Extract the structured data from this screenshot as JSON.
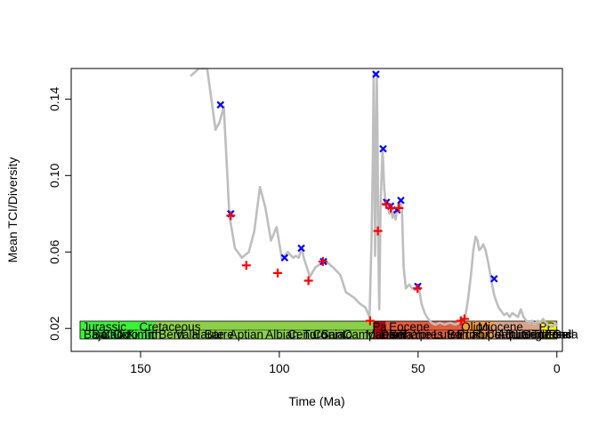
{
  "chart_data": {
    "type": "line",
    "title": "",
    "xlabel": "Time (Ma)",
    "ylabel": "Mean TCI/Diversity",
    "xlim": [
      175,
      -2
    ],
    "ylim": [
      0.008,
      0.156
    ],
    "x_ticks": [
      150,
      100,
      50,
      0
    ],
    "x_tick_labels": [
      "150",
      "100",
      "50",
      "0"
    ],
    "y_ticks": [
      0.02,
      0.06,
      0.1,
      0.14
    ],
    "y_tick_labels": [
      "0.02",
      "0.06",
      "0.10",
      "0.14"
    ],
    "grid": false,
    "legend": "none",
    "series": [
      {
        "style": "line",
        "color": "#bebebe",
        "x": [
          132,
          129,
          126,
          123,
          121.5,
          120,
          118,
          116,
          113.5,
          111,
          109,
          107,
          105,
          103,
          101,
          99,
          97,
          95,
          94,
          93,
          92,
          91,
          89,
          87,
          85,
          83,
          80,
          78,
          76,
          73,
          71,
          69,
          67.5,
          66.7,
          66.3,
          66.0,
          65.7,
          65.5,
          65.2,
          64.9,
          64.6,
          64.3,
          64.0,
          63.5,
          62.8,
          62.2,
          61.7,
          61.0,
          60.4,
          59.7,
          59.2,
          58.7,
          58.1,
          57.5,
          56.9,
          56.4,
          55.8,
          55.2,
          54.4,
          53.2,
          52.2,
          51.0,
          49.8,
          48.8,
          47.6,
          46.4,
          45.2,
          43.8,
          42.2,
          40.5,
          38.5,
          36.6,
          35.2,
          34.4,
          33.7,
          33.0,
          32.2,
          31.5,
          30.8,
          30.1,
          29.3,
          28.6,
          28.0,
          27.3,
          26.5,
          25.7,
          24.8,
          23.9,
          23.2,
          22.5,
          21.8,
          21.0,
          20.0,
          19.0,
          18.0,
          17.0,
          16.0,
          15.0,
          14.0,
          13.0,
          12.0,
          11.0,
          10.0,
          9.0,
          8.0,
          7.0,
          6.0,
          5.0,
          4.0,
          3.0,
          2.0,
          1.0,
          0.5,
          0
        ],
        "y": [
          0.152,
          0.156,
          0.156,
          0.124,
          0.128,
          0.136,
          0.079,
          0.062,
          0.057,
          0.06,
          0.071,
          0.094,
          0.083,
          0.066,
          0.073,
          0.056,
          0.06,
          0.057,
          0.058,
          0.057,
          0.062,
          0.056,
          0.047,
          0.052,
          0.054,
          0.055,
          0.051,
          0.048,
          0.039,
          0.036,
          0.033,
          0.031,
          0.026,
          0.07,
          0.11,
          0.153,
          0.1,
          0.058,
          0.096,
          0.153,
          0.116,
          0.062,
          0.03,
          0.085,
          0.114,
          0.093,
          0.086,
          0.085,
          0.08,
          0.082,
          0.078,
          0.081,
          0.077,
          0.083,
          0.086,
          0.087,
          0.082,
          0.052,
          0.041,
          0.043,
          0.041,
          0.04,
          0.042,
          0.033,
          0.028,
          0.025,
          0.023,
          0.022,
          0.023,
          0.022,
          0.023,
          0.022,
          0.023,
          0.024,
          0.025,
          0.026,
          0.033,
          0.041,
          0.05,
          0.061,
          0.068,
          0.066,
          0.061,
          0.062,
          0.064,
          0.061,
          0.055,
          0.048,
          0.042,
          0.037,
          0.034,
          0.031,
          0.029,
          0.027,
          0.028,
          0.026,
          0.028,
          0.027,
          0.026,
          0.03,
          0.026,
          0.024,
          0.023,
          0.024,
          0.022,
          0.024,
          0.023,
          0.025,
          0.023,
          0.022,
          0.021,
          0.022,
          0.023,
          0.021
        ]
      },
      {
        "style": "points",
        "marker": "x",
        "color": "#0000ff",
        "x": [
          121.2,
          117.5,
          98.1,
          92.1,
          84.1,
          65.2,
          62.6,
          61.4,
          59.9,
          57.6,
          56.2,
          50.1,
          22.6
        ],
        "y": [
          0.137,
          0.08,
          0.057,
          0.062,
          0.055,
          0.153,
          0.114,
          0.086,
          0.084,
          0.082,
          0.087,
          0.042,
          0.046
        ]
      },
      {
        "style": "points",
        "marker": "+",
        "color": "#ff0000",
        "x": [
          117.5,
          111.9,
          100.6,
          89.5,
          84.3,
          67.3,
          64.5,
          61.5,
          59.8,
          56.9,
          50.2,
          34.6,
          33.3
        ],
        "y": [
          0.079,
          0.053,
          0.049,
          0.045,
          0.055,
          0.024,
          0.071,
          0.085,
          0.083,
          0.083,
          0.041,
          0.024,
          0.025
        ]
      }
    ],
    "timescale": {
      "periods": [
        {
          "label": "Jurassic",
          "from": 171.8,
          "to": 145.0,
          "color": "#3cf238"
        },
        {
          "label": "Cretaceous",
          "from": 145.0,
          "to": 66.0,
          "color": "#8cd04a"
        },
        {
          "label": "Paleo",
          "from": 66.0,
          "to": 61.6,
          "color": "#b8040c"
        },
        {
          "label": "Eocene",
          "from": 61.6,
          "to": 33.9,
          "color": "#e25d3e"
        },
        {
          "label": "Oligo",
          "from": 33.9,
          "to": 23.0,
          "color": "#f39a3b"
        },
        {
          "label": "Miocene",
          "from": 23.0,
          "to": 5.3,
          "color": "#d8a48a"
        },
        {
          "label": "PP",
          "from": 5.3,
          "to": 0,
          "color": "#f6f10c"
        }
      ],
      "period_label_positions": [
        171,
        150.5,
        66.5,
        60.5,
        34.5,
        28.5,
        6.5
      ],
      "stage_labels": [
        "Bajo",
        "Batho",
        "Callo",
        "Oxfo",
        "Kimm",
        "Tith",
        "Berri",
        "Vala",
        "Haute",
        "Barre",
        "Aptian",
        "Albian",
        "Ceno",
        "Turo",
        "Conia",
        "Santo",
        "Campanian",
        "Maas",
        "Dani",
        "Sela",
        "Thane",
        "Ypres",
        "Luteti",
        "Barto",
        "Priab",
        "Rupel",
        "Chatt",
        "Aquit",
        "Burdi",
        "Langh",
        "Serra",
        "Torto",
        "Messi",
        "Zancl",
        "Piac",
        "Gela"
      ],
      "stage_label_positions": [
        170.5,
        167.5,
        164.0,
        160.0,
        155.0,
        149.5,
        143.5,
        137.5,
        131.5,
        127.0,
        118.0,
        105.0,
        97.0,
        91.5,
        88.0,
        85.0,
        77.0,
        69.0,
        63.5,
        60.5,
        57.5,
        52.0,
        44.5,
        39.5,
        36.0,
        30.5,
        25.5,
        21.5,
        18.5,
        15.0,
        12.5,
        9.0,
        6.5,
        4.5,
        3.0,
        1.5
      ]
    }
  }
}
